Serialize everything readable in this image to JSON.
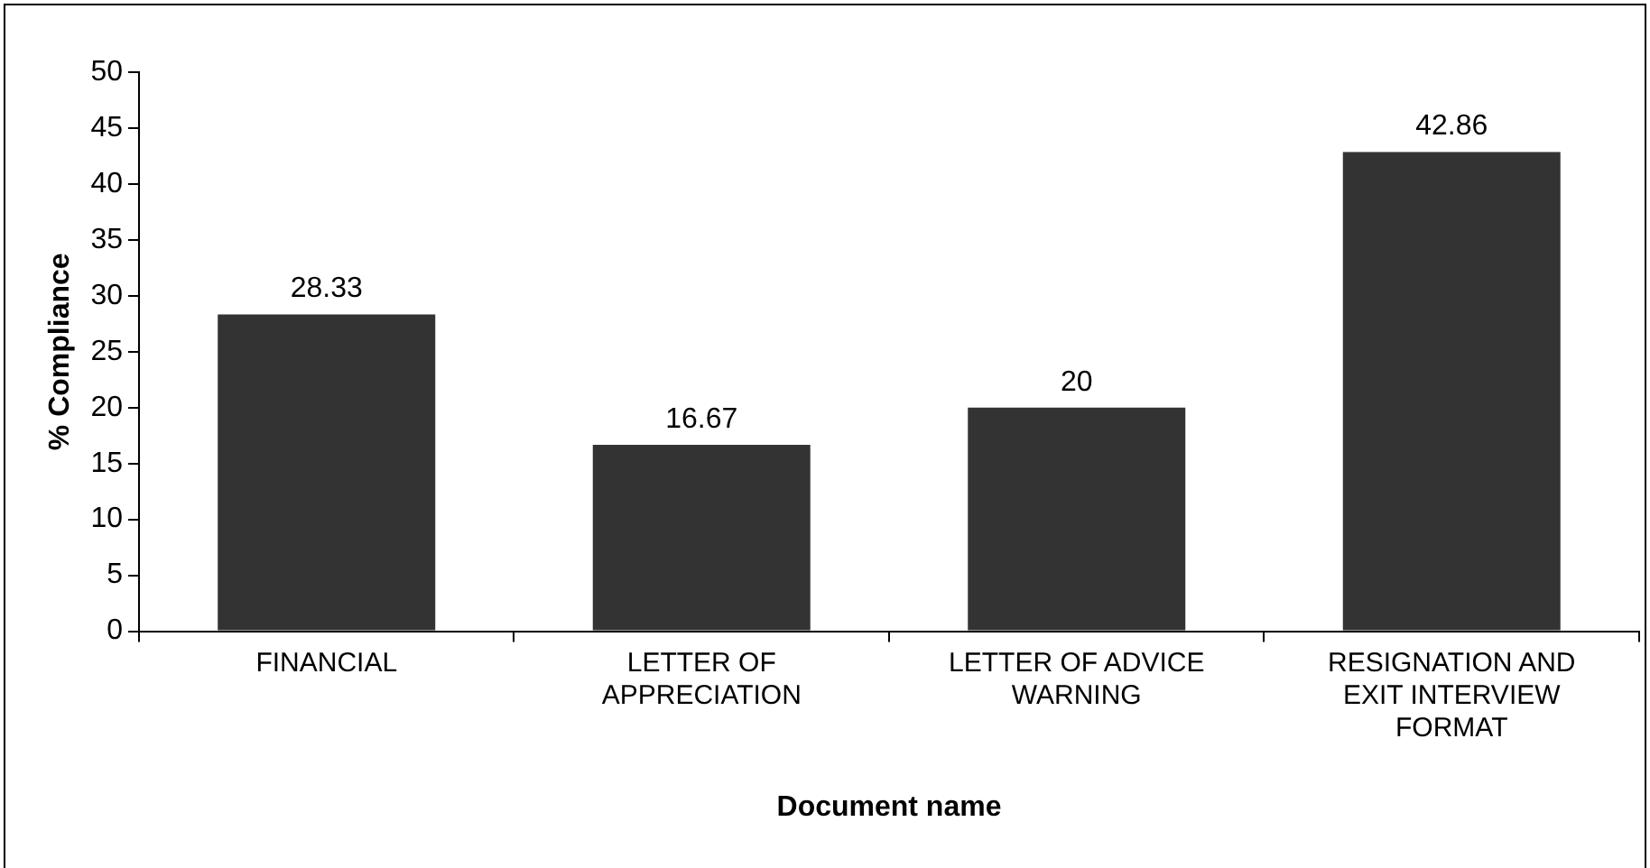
{
  "chart_data": {
    "type": "bar",
    "xlabel": "Document name",
    "ylabel": "% Compliance",
    "categories": [
      "FINANCIAL",
      "LETTER OF APPRECIATION",
      "LETTER OF ADVICE WARNING",
      "RESIGNATION AND EXIT INTERVIEW FORMAT"
    ],
    "values": [
      28.33,
      16.67,
      20,
      42.86
    ],
    "color": "#333333",
    "ylim": [
      0,
      50
    ],
    "yticks": [
      0,
      5,
      10,
      15,
      20,
      25,
      30,
      35,
      40,
      45,
      50
    ],
    "grid": false,
    "legend": false,
    "value_labels": [
      "28.33",
      "16.67",
      "20",
      "42.86"
    ]
  }
}
